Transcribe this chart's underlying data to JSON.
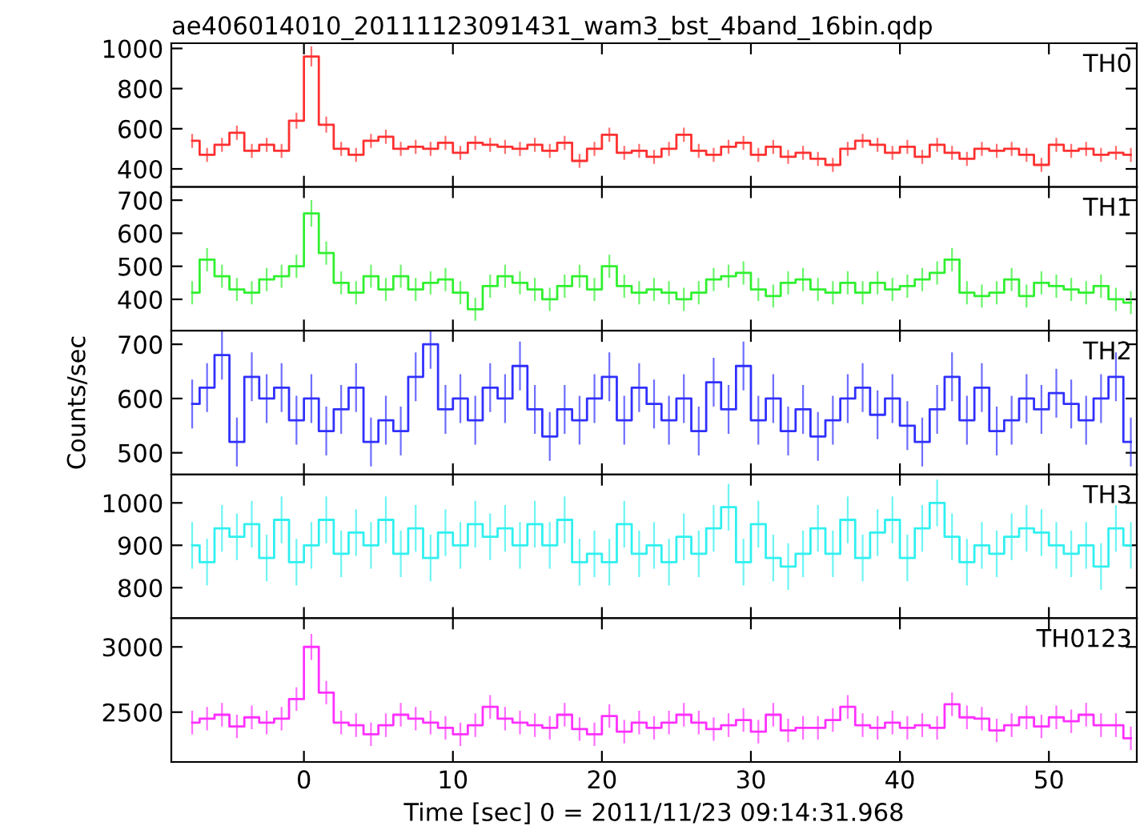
{
  "chart_data": [
    {
      "type": "step",
      "title": "ae406014010_20111123091431_wam3_bst_4band_16bin.qdp",
      "x": [
        -7.5,
        -6.5,
        -5.5,
        -4.5,
        -3.5,
        -2.5,
        -1.5,
        -0.5,
        0.5,
        1.5,
        2.5,
        3.5,
        4.5,
        5.5,
        6.5,
        7.5,
        8.5,
        9.5,
        10.5,
        11.5,
        12.5,
        13.5,
        14.5,
        15.5,
        16.5,
        17.5,
        18.5,
        19.5,
        20.5,
        21.5,
        22.5,
        23.5,
        24.5,
        25.5,
        26.5,
        27.5,
        28.5,
        29.5,
        30.5,
        31.5,
        32.5,
        33.5,
        34.5,
        35.5,
        36.5,
        37.5,
        38.5,
        39.5,
        40.5,
        41.5,
        42.5,
        43.5,
        44.5,
        45.5,
        46.5,
        47.5,
        48.5,
        49.5,
        50.5,
        51.5,
        52.5,
        53.5,
        54.5,
        55.5
      ],
      "xlim": [
        -8.9,
        55.9
      ],
      "xticks": [
        0,
        10,
        20,
        30,
        40,
        50
      ],
      "ylim": [
        310,
        1026
      ],
      "yticks": [
        400,
        600,
        800,
        1000
      ],
      "tick_labels": "y",
      "legend": false,
      "series": [
        {
          "name": "TH0",
          "color": "#ff3030",
          "values": [
            540,
            470,
            520,
            580,
            490,
            520,
            490,
            640,
            960,
            620,
            500,
            470,
            540,
            560,
            500,
            510,
            500,
            530,
            480,
            530,
            520,
            510,
            500,
            520,
            490,
            530,
            440,
            500,
            570,
            480,
            490,
            460,
            500,
            570,
            490,
            470,
            510,
            530,
            470,
            510,
            460,
            480,
            450,
            420,
            500,
            540,
            520,
            480,
            510,
            460,
            520,
            480,
            450,
            500,
            490,
            500,
            470,
            420,
            520,
            490,
            500,
            470,
            480,
            470
          ],
          "errors": [
            35,
            35,
            35,
            35,
            35,
            35,
            35,
            40,
            50,
            40,
            35,
            35,
            35,
            35,
            35,
            35,
            35,
            35,
            35,
            35,
            35,
            35,
            35,
            35,
            35,
            35,
            35,
            35,
            35,
            35,
            35,
            35,
            35,
            35,
            35,
            35,
            35,
            35,
            35,
            35,
            35,
            35,
            35,
            35,
            35,
            35,
            35,
            35,
            35,
            35,
            35,
            35,
            35,
            35,
            35,
            35,
            35,
            35,
            35,
            35,
            35,
            35,
            35,
            35
          ]
        }
      ]
    },
    {
      "type": "step",
      "x": [
        -7.5,
        -6.5,
        -5.5,
        -4.5,
        -3.5,
        -2.5,
        -1.5,
        -0.5,
        0.5,
        1.5,
        2.5,
        3.5,
        4.5,
        5.5,
        6.5,
        7.5,
        8.5,
        9.5,
        10.5,
        11.5,
        12.5,
        13.5,
        14.5,
        15.5,
        16.5,
        17.5,
        18.5,
        19.5,
        20.5,
        21.5,
        22.5,
        23.5,
        24.5,
        25.5,
        26.5,
        27.5,
        28.5,
        29.5,
        30.5,
        31.5,
        32.5,
        33.5,
        34.5,
        35.5,
        36.5,
        37.5,
        38.5,
        39.5,
        40.5,
        41.5,
        42.5,
        43.5,
        44.5,
        45.5,
        46.5,
        47.5,
        48.5,
        49.5,
        50.5,
        51.5,
        52.5,
        53.5,
        54.5,
        55.5
      ],
      "xlim": [
        -8.9,
        55.9
      ],
      "xticks": [
        0,
        10,
        20,
        30,
        40,
        50
      ],
      "ylim": [
        305,
        740
      ],
      "yticks": [
        400,
        500,
        600,
        700
      ],
      "tick_labels": "y",
      "legend": false,
      "series": [
        {
          "name": "TH1",
          "color": "#30f030",
          "values": [
            420,
            520,
            470,
            430,
            420,
            460,
            470,
            500,
            660,
            540,
            450,
            420,
            470,
            430,
            470,
            430,
            450,
            460,
            420,
            370,
            440,
            470,
            450,
            430,
            400,
            440,
            470,
            430,
            500,
            440,
            420,
            430,
            420,
            400,
            420,
            460,
            470,
            480,
            430,
            410,
            450,
            460,
            430,
            420,
            450,
            420,
            450,
            430,
            440,
            460,
            480,
            520,
            420,
            410,
            420,
            460,
            410,
            450,
            440,
            430,
            420,
            440,
            400,
            390
          ],
          "errors": [
            35,
            35,
            35,
            35,
            35,
            35,
            35,
            35,
            40,
            35,
            35,
            35,
            35,
            35,
            35,
            35,
            35,
            35,
            35,
            35,
            35,
            35,
            35,
            35,
            35,
            35,
            35,
            35,
            35,
            35,
            35,
            35,
            35,
            35,
            35,
            35,
            35,
            35,
            35,
            35,
            35,
            35,
            35,
            35,
            35,
            35,
            35,
            35,
            35,
            35,
            35,
            35,
            35,
            35,
            35,
            35,
            35,
            35,
            35,
            35,
            35,
            35,
            35,
            35
          ]
        }
      ]
    },
    {
      "type": "step",
      "ylabel": "Counts/sec",
      "x": [
        -7.5,
        -6.5,
        -5.5,
        -4.5,
        -3.5,
        -2.5,
        -1.5,
        -0.5,
        0.5,
        1.5,
        2.5,
        3.5,
        4.5,
        5.5,
        6.5,
        7.5,
        8.5,
        9.5,
        10.5,
        11.5,
        12.5,
        13.5,
        14.5,
        15.5,
        16.5,
        17.5,
        18.5,
        19.5,
        20.5,
        21.5,
        22.5,
        23.5,
        24.5,
        25.5,
        26.5,
        27.5,
        28.5,
        29.5,
        30.5,
        31.5,
        32.5,
        33.5,
        34.5,
        35.5,
        36.5,
        37.5,
        38.5,
        39.5,
        40.5,
        41.5,
        42.5,
        43.5,
        44.5,
        45.5,
        46.5,
        47.5,
        48.5,
        49.5,
        50.5,
        51.5,
        52.5,
        53.5,
        54.5,
        55.5
      ],
      "xlim": [
        -8.9,
        55.9
      ],
      "xticks": [
        0,
        10,
        20,
        30,
        40,
        50
      ],
      "ylim": [
        460,
        725
      ],
      "yticks": [
        500,
        600,
        700
      ],
      "tick_labels": "y",
      "legend": false,
      "series": [
        {
          "name": "TH2",
          "color": "#3030ff",
          "values": [
            590,
            620,
            680,
            520,
            640,
            600,
            620,
            560,
            600,
            540,
            580,
            620,
            520,
            560,
            540,
            640,
            700,
            580,
            600,
            560,
            620,
            600,
            660,
            580,
            530,
            580,
            560,
            600,
            640,
            560,
            620,
            590,
            560,
            600,
            540,
            630,
            580,
            660,
            560,
            600,
            540,
            580,
            530,
            560,
            600,
            620,
            570,
            600,
            550,
            520,
            580,
            640,
            560,
            620,
            540,
            560,
            600,
            580,
            610,
            590,
            560,
            600,
            640,
            520
          ],
          "errors": [
            45,
            45,
            45,
            45,
            45,
            45,
            45,
            45,
            45,
            45,
            45,
            45,
            45,
            45,
            45,
            45,
            45,
            45,
            45,
            45,
            45,
            45,
            45,
            45,
            45,
            45,
            45,
            45,
            45,
            45,
            45,
            45,
            45,
            45,
            45,
            45,
            45,
            45,
            45,
            45,
            45,
            45,
            45,
            45,
            45,
            45,
            45,
            45,
            45,
            45,
            45,
            45,
            45,
            45,
            45,
            45,
            45,
            45,
            45,
            45,
            45,
            45,
            45,
            45
          ]
        }
      ]
    },
    {
      "type": "step",
      "x": [
        -7.5,
        -6.5,
        -5.5,
        -4.5,
        -3.5,
        -2.5,
        -1.5,
        -0.5,
        0.5,
        1.5,
        2.5,
        3.5,
        4.5,
        5.5,
        6.5,
        7.5,
        8.5,
        9.5,
        10.5,
        11.5,
        12.5,
        13.5,
        14.5,
        15.5,
        16.5,
        17.5,
        18.5,
        19.5,
        20.5,
        21.5,
        22.5,
        23.5,
        24.5,
        25.5,
        26.5,
        27.5,
        28.5,
        29.5,
        30.5,
        31.5,
        32.5,
        33.5,
        34.5,
        35.5,
        36.5,
        37.5,
        38.5,
        39.5,
        40.5,
        41.5,
        42.5,
        43.5,
        44.5,
        45.5,
        46.5,
        47.5,
        48.5,
        49.5,
        50.5,
        51.5,
        52.5,
        53.5,
        54.5,
        55.5
      ],
      "xlim": [
        -8.9,
        55.9
      ],
      "xticks": [
        0,
        10,
        20,
        30,
        40,
        50
      ],
      "ylim": [
        728,
        1067
      ],
      "yticks": [
        800,
        900,
        1000
      ],
      "tick_labels": "y",
      "legend": false,
      "series": [
        {
          "name": "TH3",
          "color": "#30f0f0",
          "values": [
            900,
            860,
            940,
            920,
            950,
            870,
            960,
            860,
            900,
            960,
            880,
            930,
            900,
            960,
            880,
            940,
            870,
            930,
            900,
            950,
            920,
            940,
            900,
            950,
            900,
            960,
            860,
            880,
            860,
            950,
            880,
            900,
            860,
            920,
            880,
            940,
            990,
            860,
            950,
            870,
            850,
            880,
            940,
            880,
            960,
            870,
            930,
            960,
            870,
            940,
            1000,
            920,
            860,
            900,
            880,
            920,
            940,
            930,
            900,
            880,
            900,
            850,
            940,
            900
          ],
          "errors": [
            55,
            55,
            55,
            55,
            55,
            55,
            55,
            55,
            55,
            55,
            55,
            55,
            55,
            55,
            55,
            55,
            55,
            55,
            55,
            55,
            55,
            55,
            55,
            55,
            55,
            55,
            55,
            55,
            55,
            55,
            55,
            55,
            55,
            55,
            55,
            55,
            55,
            55,
            55,
            55,
            55,
            55,
            55,
            55,
            55,
            55,
            55,
            55,
            55,
            55,
            55,
            55,
            55,
            55,
            55,
            55,
            55,
            55,
            55,
            55,
            55,
            55,
            55,
            55
          ]
        }
      ]
    },
    {
      "type": "step",
      "xlabel": "Time [sec] 0 = 2011/11/23 09:14:31.968",
      "x": [
        -7.5,
        -6.5,
        -5.5,
        -4.5,
        -3.5,
        -2.5,
        -1.5,
        -0.5,
        0.5,
        1.5,
        2.5,
        3.5,
        4.5,
        5.5,
        6.5,
        7.5,
        8.5,
        9.5,
        10.5,
        11.5,
        12.5,
        13.5,
        14.5,
        15.5,
        16.5,
        17.5,
        18.5,
        19.5,
        20.5,
        21.5,
        22.5,
        23.5,
        24.5,
        25.5,
        26.5,
        27.5,
        28.5,
        29.5,
        30.5,
        31.5,
        32.5,
        33.5,
        34.5,
        35.5,
        36.5,
        37.5,
        38.5,
        39.5,
        40.5,
        41.5,
        42.5,
        43.5,
        44.5,
        45.5,
        46.5,
        47.5,
        48.5,
        49.5,
        50.5,
        51.5,
        52.5,
        53.5,
        54.5,
        55.5
      ],
      "xlim": [
        -8.9,
        55.9
      ],
      "xticks": [
        0,
        10,
        20,
        30,
        40,
        50
      ],
      "ylim": [
        2118,
        3220
      ],
      "yticks": [
        2500,
        3000
      ],
      "legend": false,
      "series": [
        {
          "name": "TH0123",
          "color": "#ff30ff",
          "values": [
            2420,
            2450,
            2480,
            2390,
            2460,
            2420,
            2450,
            2600,
            3000,
            2650,
            2420,
            2400,
            2330,
            2400,
            2480,
            2450,
            2420,
            2380,
            2330,
            2400,
            2540,
            2450,
            2420,
            2400,
            2380,
            2480,
            2370,
            2330,
            2470,
            2350,
            2420,
            2380,
            2420,
            2480,
            2420,
            2370,
            2400,
            2440,
            2350,
            2480,
            2360,
            2380,
            2380,
            2440,
            2540,
            2400,
            2380,
            2420,
            2380,
            2400,
            2380,
            2560,
            2460,
            2450,
            2360,
            2400,
            2460,
            2390,
            2460,
            2430,
            2480,
            2400,
            2400,
            2300
          ],
          "errors": [
            90,
            90,
            90,
            90,
            90,
            90,
            90,
            90,
            100,
            90,
            90,
            90,
            90,
            90,
            90,
            90,
            90,
            90,
            90,
            90,
            90,
            90,
            90,
            90,
            90,
            90,
            90,
            90,
            90,
            90,
            90,
            90,
            90,
            90,
            90,
            90,
            90,
            90,
            90,
            90,
            90,
            90,
            90,
            90,
            90,
            90,
            90,
            90,
            90,
            90,
            90,
            90,
            90,
            90,
            90,
            90,
            90,
            90,
            90,
            90,
            90,
            90,
            90,
            90
          ]
        }
      ]
    }
  ]
}
